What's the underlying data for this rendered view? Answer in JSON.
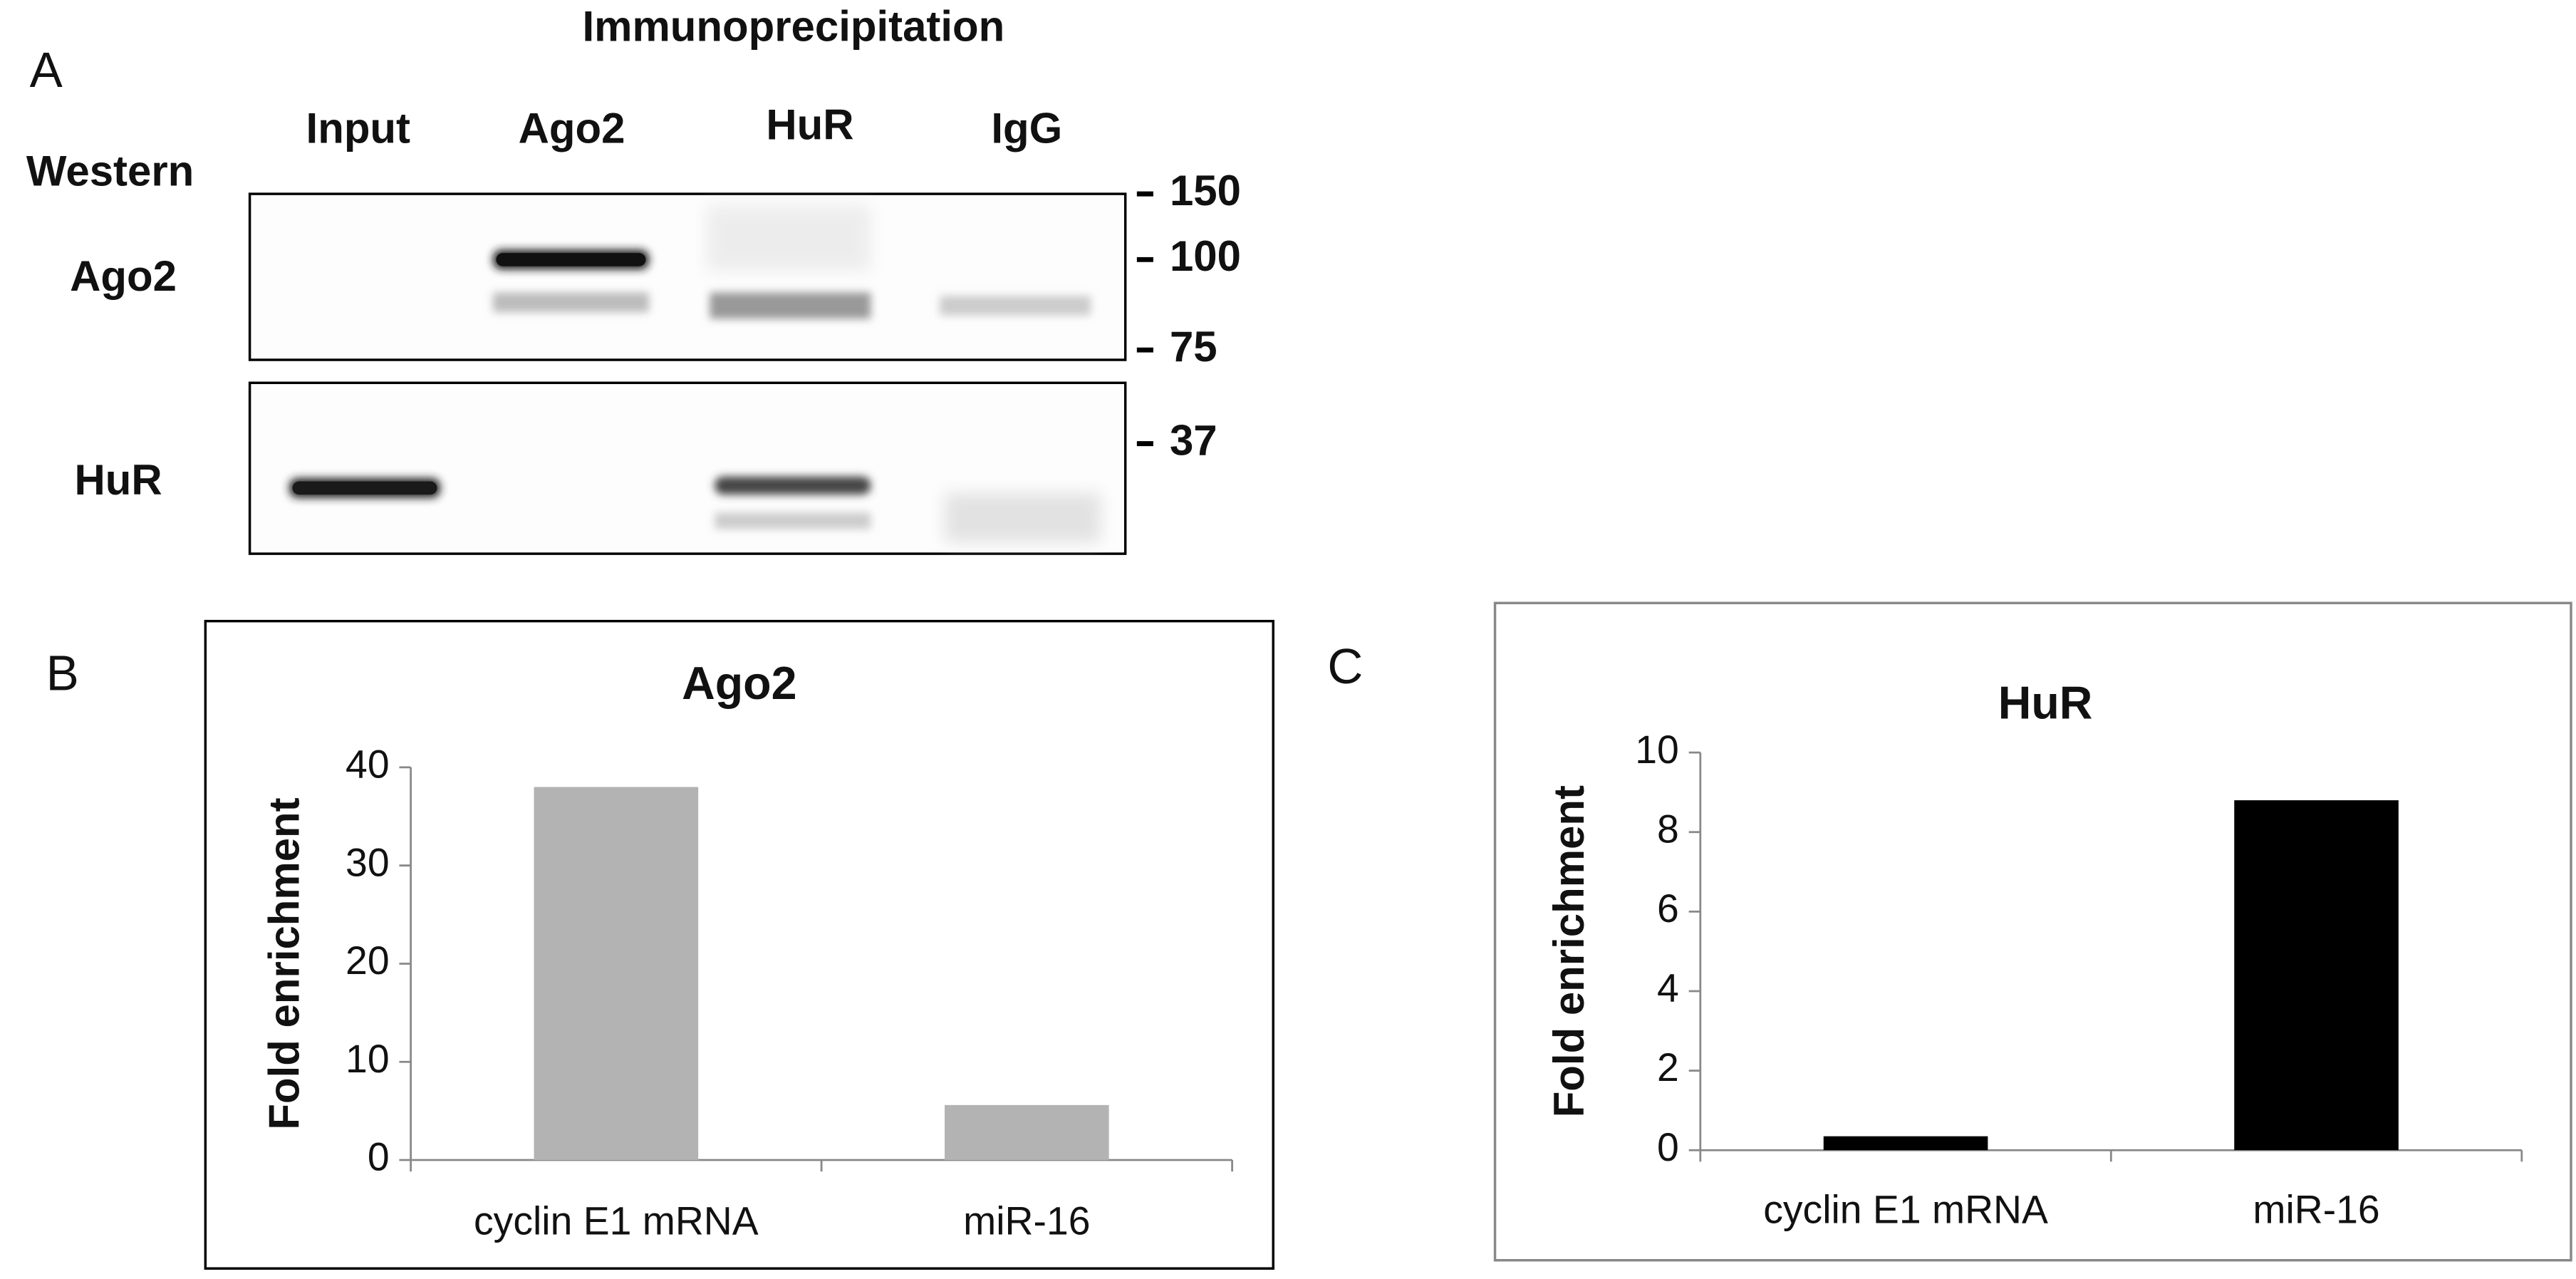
{
  "panel_labels": {
    "a": "A",
    "b": "B",
    "c": "C"
  },
  "blot": {
    "header": "Immunoprecipitation",
    "lanes": [
      "Input",
      "Ago2",
      "HuR",
      "IgG"
    ],
    "method": "Western",
    "rows": [
      "Ago2",
      "HuR"
    ],
    "markers": [
      "150",
      "100",
      "75",
      "37"
    ]
  },
  "chart_data": [
    {
      "type": "bar",
      "title": "Ago2",
      "y_label": "Fold enrichment",
      "categories": [
        "cyclin E1 mRNA",
        "miR-16"
      ],
      "values": [
        38,
        5.6
      ],
      "color": "#b3b3b3",
      "ylim": [
        0,
        40
      ],
      "yticks": [
        0,
        10,
        20,
        30,
        40
      ]
    },
    {
      "type": "bar",
      "title": "HuR",
      "y_label": "Fold enrichment",
      "categories": [
        "cyclin E1 mRNA",
        "miR-16"
      ],
      "values": [
        0.35,
        8.8
      ],
      "color": "#000000",
      "ylim": [
        0,
        10
      ],
      "yticks": [
        0,
        2,
        4,
        6,
        8,
        10
      ]
    }
  ]
}
